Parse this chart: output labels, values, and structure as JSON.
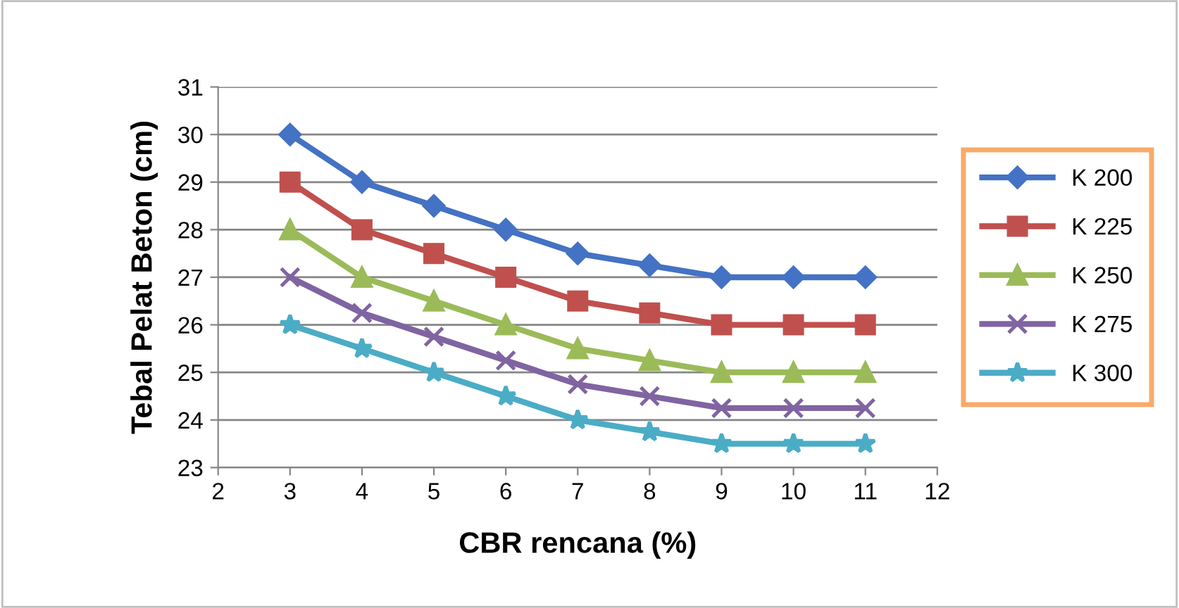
{
  "chart_data": {
    "type": "line",
    "xlabel": "CBR rencana (%)",
    "ylabel": "Tebal Pelat Beton (cm)",
    "x": [
      3,
      4,
      5,
      6,
      7,
      8,
      9,
      10,
      11
    ],
    "xlim": [
      2,
      12
    ],
    "xticks": [
      2,
      3,
      4,
      5,
      6,
      7,
      8,
      9,
      10,
      11,
      12
    ],
    "ylim": [
      23,
      31
    ],
    "yticks": [
      23,
      24,
      25,
      26,
      27,
      28,
      29,
      30,
      31
    ],
    "grid": "y",
    "legend": "right",
    "line_style": "solid",
    "series": [
      {
        "name": "K 200",
        "color": "#4472c4",
        "marker": "diamond",
        "values": [
          30,
          29,
          28.5,
          28,
          27.5,
          27.25,
          27,
          27,
          27
        ]
      },
      {
        "name": "K 225",
        "color": "#c0504d",
        "marker": "square",
        "values": [
          29,
          28,
          27.5,
          27,
          26.5,
          26.25,
          26,
          26,
          26
        ]
      },
      {
        "name": "K 250",
        "color": "#9bbb59",
        "marker": "triangle",
        "values": [
          28,
          27,
          26.5,
          26,
          25.5,
          25.25,
          25,
          25,
          25
        ]
      },
      {
        "name": "K 275",
        "color": "#8064a2",
        "marker": "cross",
        "values": [
          27,
          26.25,
          25.75,
          25.25,
          24.75,
          24.5,
          24.25,
          24.25,
          24.25
        ]
      },
      {
        "name": "K 300",
        "color": "#4bacc6",
        "marker": "star",
        "values": [
          26,
          25.5,
          25,
          24.5,
          24,
          23.75,
          23.5,
          23.5,
          23.5
        ]
      }
    ]
  }
}
